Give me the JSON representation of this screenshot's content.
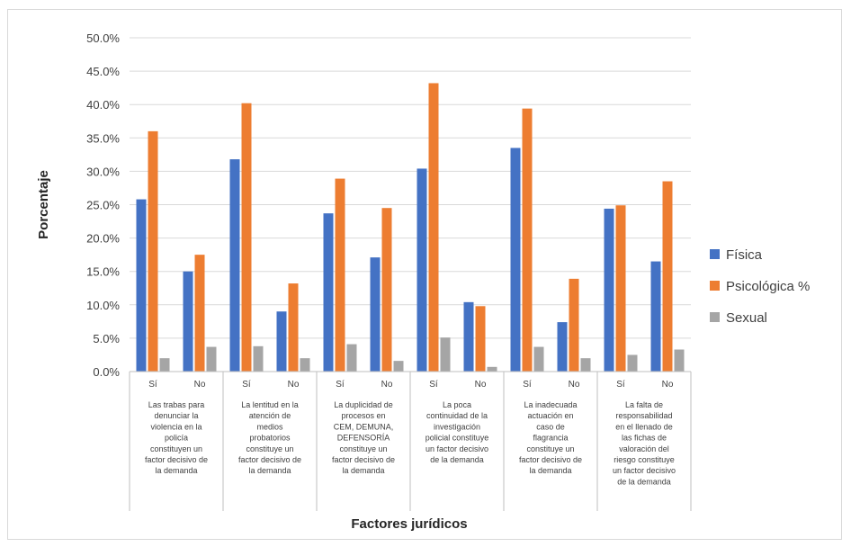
{
  "chart_data": {
    "type": "bar",
    "title": "",
    "xlabel": "Factores jurídicos",
    "ylabel": "Porcentaje",
    "ylim": [
      0,
      50
    ],
    "yticks": [
      "0.0%",
      "5.0%",
      "10.0%",
      "15.0%",
      "20.0%",
      "25.0%",
      "30.0%",
      "35.0%",
      "40.0%",
      "45.0%",
      "50.0%"
    ],
    "grid": true,
    "legend_position": "right",
    "groups": [
      {
        "label": [
          "Las trabas para",
          "denunciar la",
          "violencia en la",
          "policía",
          "constituyen un",
          "factor decisivo de",
          "la demanda"
        ]
      },
      {
        "label": [
          "La lentitud en la",
          "atención de",
          "medios",
          "probatorios",
          "constituye un",
          "factor decisivo de",
          "la demanda"
        ]
      },
      {
        "label": [
          "La duplicidad de",
          "procesos en",
          "CEM, DEMUNA,",
          "DEFENSORÍA",
          "constituye un",
          "factor decisivo de",
          "la demanda"
        ]
      },
      {
        "label": [
          "La poca",
          "continuidad de la",
          "investigación",
          "policial constituye",
          "un factor decisivo",
          "de la demanda"
        ]
      },
      {
        "label": [
          "La inadecuada",
          "actuación en",
          "caso de",
          "flagrancia",
          "constituye un",
          "factor decisivo de",
          "la demanda"
        ]
      },
      {
        "label": [
          "La falta de",
          "responsabilidad",
          "en el llenado de",
          "las fichas de",
          "valoración del",
          "riesgo constituye",
          "un factor decisivo",
          "de la demanda"
        ]
      }
    ],
    "categories": [
      "Sí",
      "No",
      "Sí",
      "No",
      "Sí",
      "No",
      "Sí",
      "No",
      "Sí",
      "No",
      "Sí",
      "No"
    ],
    "series": [
      {
        "name": "Física",
        "color": "#4472C4",
        "values": [
          25.8,
          15.0,
          31.8,
          9.0,
          23.7,
          17.1,
          30.4,
          10.4,
          33.5,
          7.4,
          24.4,
          16.5
        ]
      },
      {
        "name": "Psicológica %",
        "color": "#ED7D31",
        "values": [
          36.0,
          17.5,
          40.2,
          13.2,
          28.9,
          24.5,
          43.2,
          9.8,
          39.4,
          13.9,
          24.9,
          28.5
        ]
      },
      {
        "name": "Sexual",
        "color": "#A5A5A5",
        "values": [
          2.0,
          3.7,
          3.8,
          2.0,
          4.1,
          1.6,
          5.1,
          0.7,
          3.7,
          2.0,
          2.5,
          3.3
        ]
      }
    ]
  }
}
